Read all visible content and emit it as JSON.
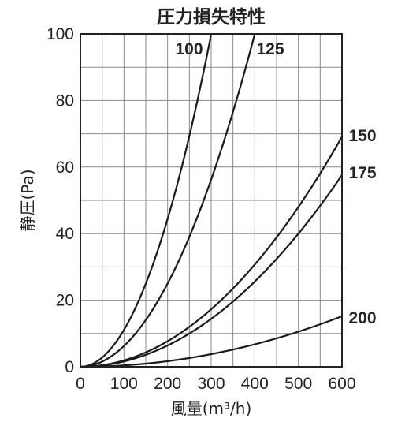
{
  "chart_data": {
    "type": "line",
    "title": "圧力損失特性",
    "xlabel": "風量(m³/h)",
    "ylabel": "静圧(Pa)",
    "xlim": [
      0,
      600
    ],
    "ylim": [
      0,
      100
    ],
    "x_ticks": [
      "0",
      "100",
      "200",
      "300",
      "400",
      "500",
      "600"
    ],
    "y_ticks": [
      "0",
      "20",
      "40",
      "60",
      "80",
      "100"
    ],
    "grid": true,
    "series": [
      {
        "name": "100",
        "k": 0.00111,
        "x": [
          0,
          100,
          200,
          300
        ],
        "values": [
          0,
          11.1,
          44.4,
          100
        ]
      },
      {
        "name": "125",
        "k": 0.000625,
        "x": [
          0,
          100,
          200,
          300,
          400
        ],
        "values": [
          0,
          6.3,
          25,
          56.3,
          100
        ]
      },
      {
        "name": "150",
        "k": 0.000192,
        "x": [
          0,
          100,
          200,
          300,
          400,
          500,
          600
        ],
        "values": [
          0,
          1.9,
          7.7,
          17.3,
          30.7,
          48,
          69
        ]
      },
      {
        "name": "175",
        "k": 0.00016,
        "x": [
          0,
          100,
          200,
          300,
          400,
          500,
          600
        ],
        "values": [
          0,
          1.6,
          6.4,
          14.4,
          25.6,
          40,
          57.5
        ]
      },
      {
        "name": "200",
        "k": 4.22e-05,
        "x": [
          0,
          100,
          200,
          300,
          400,
          500,
          600
        ],
        "values": [
          0,
          0.4,
          1.7,
          3.8,
          6.8,
          10.6,
          15.2
        ]
      }
    ]
  }
}
